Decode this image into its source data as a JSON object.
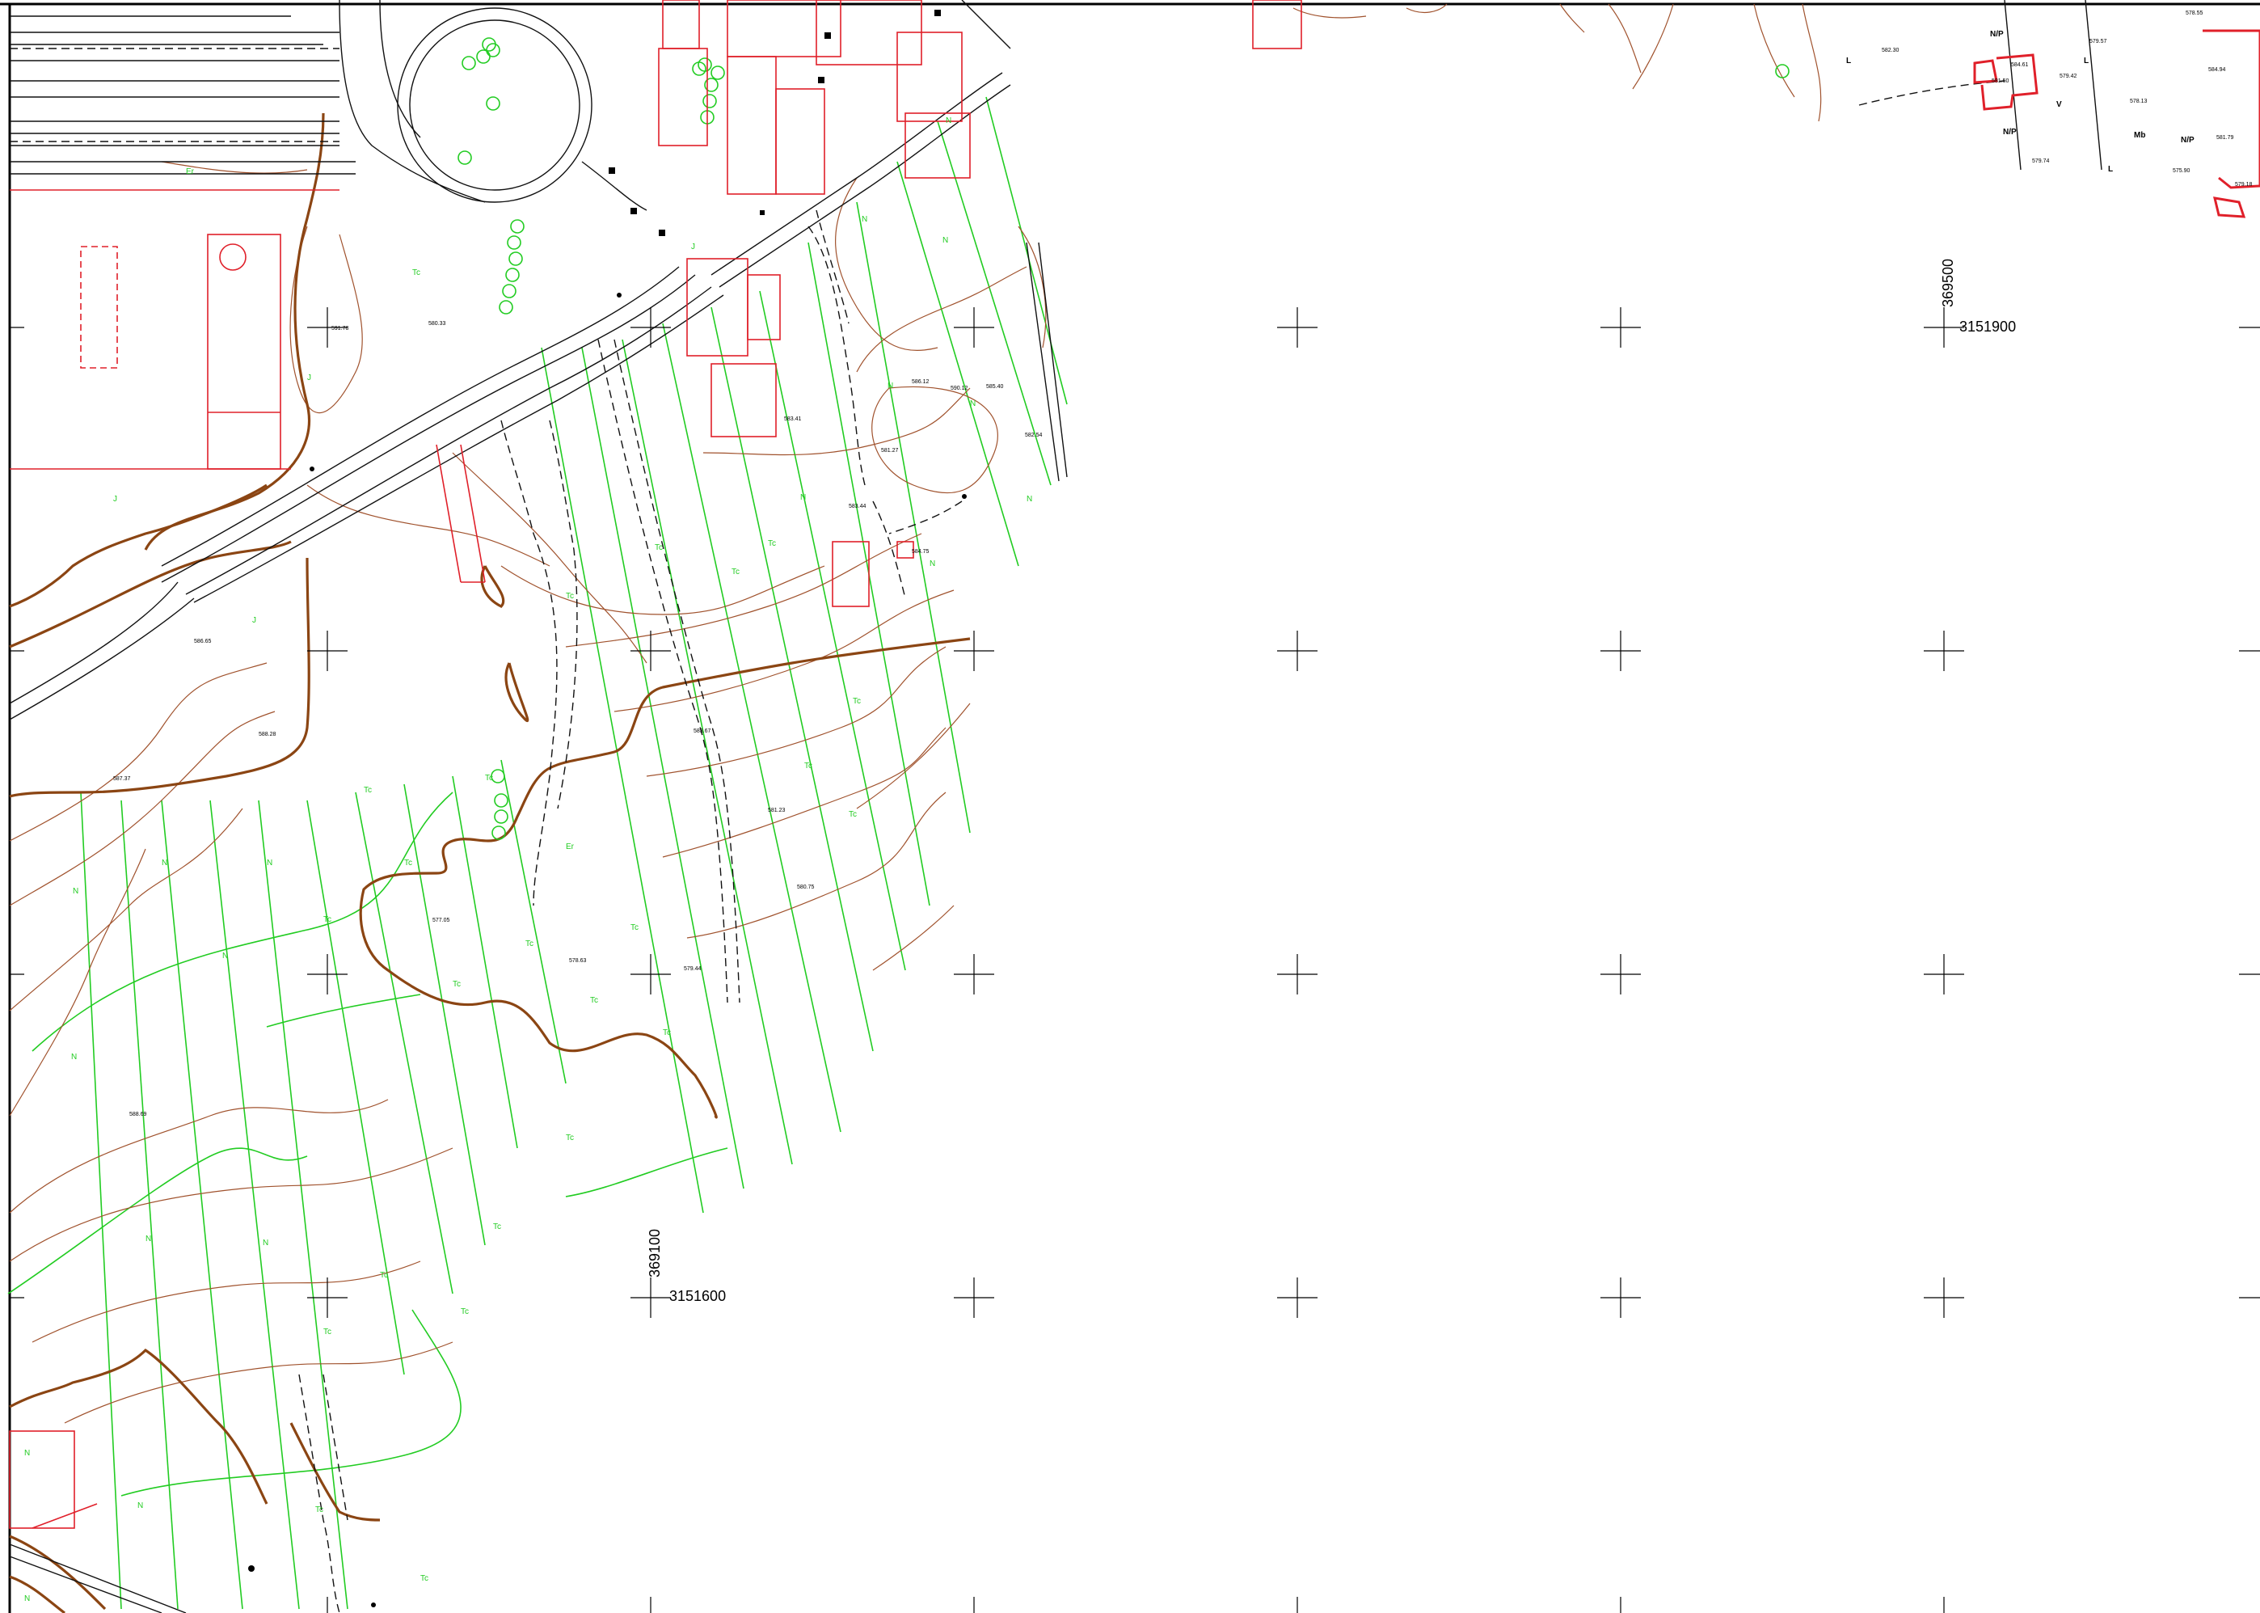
{
  "colors": {
    "frame": "#000000",
    "road": "#111111",
    "building": "#e0202a",
    "contour": "#a0522d",
    "contour_index": "#8b4513",
    "vegetation": "#22cc22",
    "grid": "#000000",
    "text": "#000000"
  },
  "grid": {
    "easting_labels": [
      {
        "text": "369100"
      },
      {
        "text": "369500"
      }
    ],
    "northing_labels": [
      {
        "text": "3151600"
      },
      {
        "text": "3151900"
      }
    ]
  },
  "landuse_codes": [
    "N/P",
    "L",
    "V",
    "Mb",
    "Tc",
    "N",
    "J",
    "Er"
  ],
  "elevations": [
    "582.30",
    "579.57",
    "579.42",
    "578.13",
    "579.74",
    "575.90",
    "579.18",
    "578.55",
    "581.79",
    "584.94",
    "581.50",
    "584.61",
    "586.12",
    "583.44",
    "581.27",
    "585.40",
    "580.33",
    "584.75",
    "583.67",
    "581.23",
    "580.75",
    "579.44",
    "578.63",
    "577.05",
    "582.54",
    "583.41",
    "590.12",
    "591.78",
    "586.65",
    "588.28",
    "587.37",
    "588.69"
  ]
}
